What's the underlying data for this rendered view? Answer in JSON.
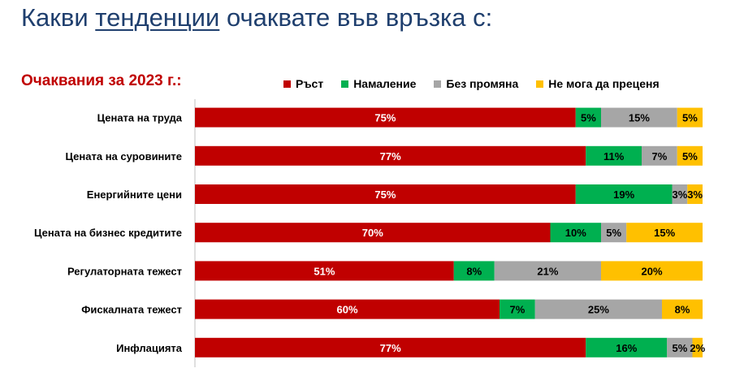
{
  "page": {
    "title_before": "Какви ",
    "title_highlight": "тенденции",
    "title_after": " очаквате във връзка с:"
  },
  "chart_data": {
    "type": "bar",
    "orientation": "horizontal",
    "stacked": "percent",
    "title": "Очаквания за 2023 г.:",
    "categories": [
      "Цената на труда",
      "Цената на суровините",
      "Енергийните цени",
      "Цената на бизнес кредитите",
      "Регулаторната тежест",
      "Фискалната тежест",
      "Инфлацията"
    ],
    "series": [
      {
        "name": "Ръст",
        "color": "#c00000",
        "label_color": "#ffffff",
        "values": [
          75,
          77,
          75,
          70,
          51,
          60,
          77
        ]
      },
      {
        "name": "Намаление",
        "color": "#00b050",
        "label_color": "#000000",
        "values": [
          5,
          11,
          19,
          10,
          8,
          7,
          16
        ]
      },
      {
        "name": "Без промяна",
        "color": "#a6a6a6",
        "label_color": "#000000",
        "values": [
          15,
          7,
          3,
          5,
          21,
          25,
          5
        ]
      },
      {
        "name": "Не мога да преценя",
        "color": "#ffc000",
        "label_color": "#000000",
        "values": [
          5,
          5,
          3,
          15,
          20,
          8,
          2
        ]
      }
    ],
    "value_format": "{v}%",
    "legend_position": "top",
    "grid": false,
    "xlim": [
      0,
      100
    ]
  }
}
